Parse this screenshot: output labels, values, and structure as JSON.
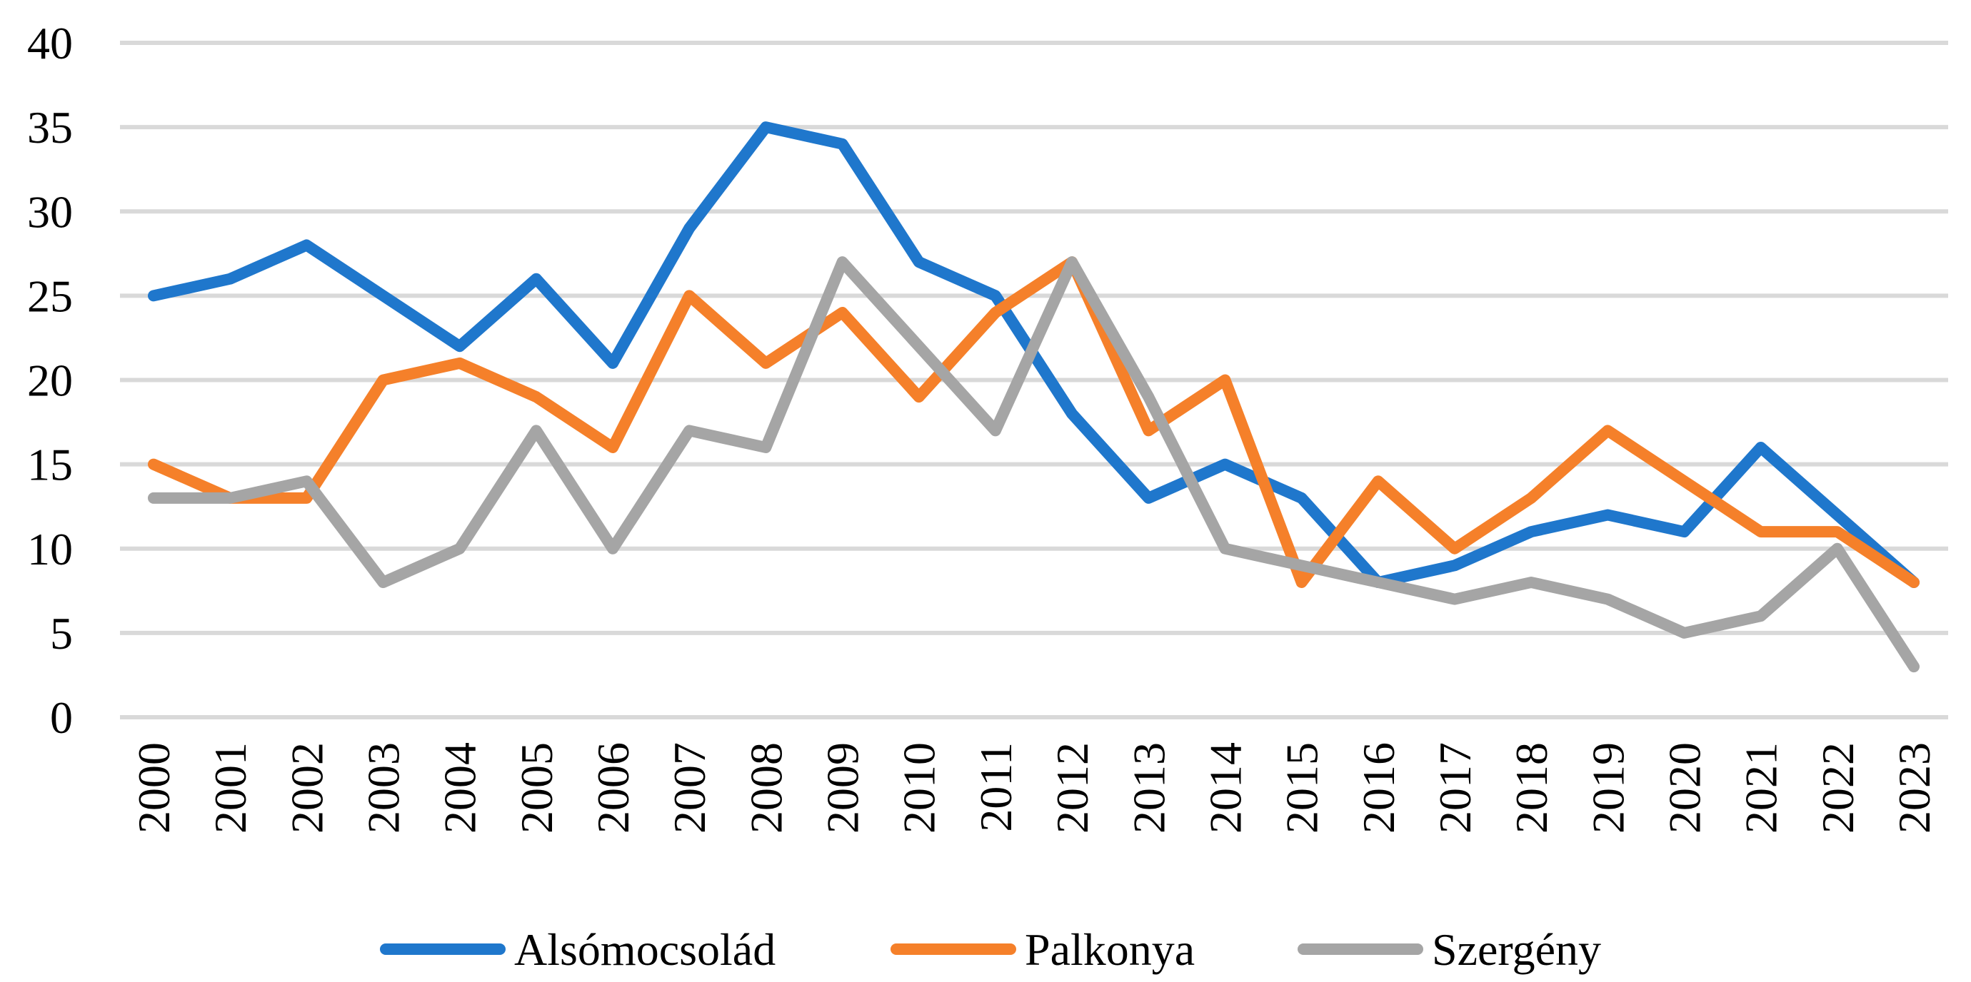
{
  "chart_data": {
    "type": "line",
    "title": "",
    "xlabel": "",
    "ylabel": "",
    "ylim": [
      0,
      40
    ],
    "y_ticks": [
      0,
      5,
      10,
      15,
      20,
      25,
      30,
      35,
      40
    ],
    "grid": true,
    "legend_position": "bottom",
    "categories": [
      "2000",
      "2001",
      "2002",
      "2003",
      "2004",
      "2005",
      "2006",
      "2007",
      "2008",
      "2009",
      "2010",
      "2011",
      "2012",
      "2013",
      "2014",
      "2015",
      "2016",
      "2017",
      "2018",
      "2019",
      "2020",
      "2021",
      "2022",
      "2023"
    ],
    "series": [
      {
        "name": "Alsómocsolád",
        "color": "#1f77cc",
        "values": [
          25,
          26,
          28,
          25,
          22,
          26,
          21,
          29,
          35,
          34,
          27,
          25,
          18,
          13,
          15,
          13,
          8,
          9,
          11,
          12,
          11,
          16,
          12,
          8
        ]
      },
      {
        "name": "Palkonya",
        "color": "#f5802a",
        "values": [
          15,
          13,
          13,
          20,
          21,
          19,
          16,
          25,
          21,
          24,
          19,
          24,
          27,
          17,
          20,
          8,
          14,
          10,
          13,
          17,
          14,
          11,
          11,
          8
        ]
      },
      {
        "name": "Szergény",
        "color": "#a5a5a5",
        "values": [
          13,
          13,
          14,
          8,
          10,
          17,
          10,
          17,
          16,
          27,
          22,
          17,
          27,
          19,
          10,
          9,
          8,
          7,
          8,
          7,
          5,
          6,
          10,
          3
        ]
      }
    ]
  }
}
